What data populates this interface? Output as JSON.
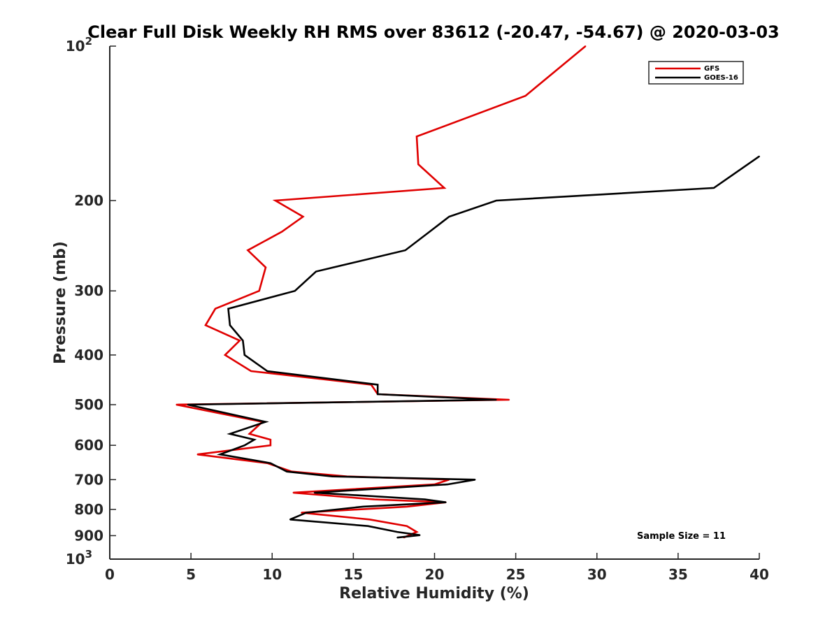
{
  "chart_data": {
    "type": "line",
    "title": "Clear Full Disk Weekly RH RMS over 83612 (-20.47, -54.67) @ 2020-03-03",
    "xlabel": "Relative Humidity (%)",
    "ylabel": "Pressure (mb)",
    "xlim": [
      0,
      40
    ],
    "ylim": [
      100,
      1000
    ],
    "yscale": "log",
    "y_reversed": true,
    "grid": false,
    "legend_position": "top-right",
    "x_ticks": [
      {
        "value": 0,
        "label": "0"
      },
      {
        "value": 5,
        "label": "5"
      },
      {
        "value": 10,
        "label": "10"
      },
      {
        "value": 15,
        "label": "15"
      },
      {
        "value": 20,
        "label": "20"
      },
      {
        "value": 25,
        "label": "25"
      },
      {
        "value": 30,
        "label": "30"
      },
      {
        "value": 35,
        "label": "35"
      },
      {
        "value": 40,
        "label": "40"
      }
    ],
    "y_ticks": [
      {
        "value": 100,
        "label": "10",
        "sup": "2"
      },
      {
        "value": 200,
        "label": "200"
      },
      {
        "value": 300,
        "label": "300"
      },
      {
        "value": 400,
        "label": "400"
      },
      {
        "value": 500,
        "label": "500"
      },
      {
        "value": 600,
        "label": "600"
      },
      {
        "value": 700,
        "label": "700"
      },
      {
        "value": 800,
        "label": "800"
      },
      {
        "value": 900,
        "label": "900"
      },
      {
        "value": 1000,
        "label": "10",
        "sup": "3"
      }
    ],
    "annotation": "Sample Size = 11",
    "series": [
      {
        "name": "GFS",
        "color": "#e00000",
        "points": [
          [
            29.3,
            100
          ],
          [
            25.6,
            125
          ],
          [
            18.9,
            150
          ],
          [
            19.0,
            170
          ],
          [
            20.6,
            189
          ],
          [
            10.2,
            200
          ],
          [
            11.9,
            215
          ],
          [
            10.6,
            230
          ],
          [
            8.5,
            250
          ],
          [
            9.6,
            270
          ],
          [
            9.2,
            300
          ],
          [
            6.5,
            325
          ],
          [
            5.9,
            350
          ],
          [
            8.0,
            375
          ],
          [
            7.1,
            400
          ],
          [
            8.7,
            430
          ],
          [
            16.1,
            457
          ],
          [
            16.5,
            477
          ],
          [
            24.6,
            489
          ],
          [
            4.1,
            500
          ],
          [
            9.4,
            540
          ],
          [
            8.6,
            570
          ],
          [
            9.9,
            585
          ],
          [
            9.9,
            600
          ],
          [
            5.4,
            625
          ],
          [
            9.7,
            650
          ],
          [
            11.2,
            675
          ],
          [
            14.6,
            690
          ],
          [
            20.9,
            700
          ],
          [
            20.0,
            715
          ],
          [
            11.3,
            742
          ],
          [
            16.3,
            765
          ],
          [
            20.7,
            775
          ],
          [
            18.3,
            790
          ],
          [
            11.8,
            812
          ],
          [
            16.0,
            837
          ],
          [
            18.3,
            862
          ],
          [
            18.9,
            885
          ],
          [
            18.1,
            908
          ]
        ]
      },
      {
        "name": "GOES-16",
        "color": "#000000",
        "points": [
          [
            40.0,
            164
          ],
          [
            37.2,
            189
          ],
          [
            23.8,
            200
          ],
          [
            20.9,
            215
          ],
          [
            19.7,
            230
          ],
          [
            18.2,
            250
          ],
          [
            12.7,
            275
          ],
          [
            11.4,
            300
          ],
          [
            7.3,
            325
          ],
          [
            7.4,
            350
          ],
          [
            8.2,
            375
          ],
          [
            8.3,
            400
          ],
          [
            9.7,
            430
          ],
          [
            16.5,
            457
          ],
          [
            16.5,
            477
          ],
          [
            23.8,
            489
          ],
          [
            4.8,
            500
          ],
          [
            9.6,
            540
          ],
          [
            7.4,
            570
          ],
          [
            8.9,
            585
          ],
          [
            8.3,
            600
          ],
          [
            6.8,
            625
          ],
          [
            9.9,
            650
          ],
          [
            10.9,
            675
          ],
          [
            13.7,
            690
          ],
          [
            22.5,
            700
          ],
          [
            20.8,
            715
          ],
          [
            12.6,
            742
          ],
          [
            19.4,
            765
          ],
          [
            20.7,
            775
          ],
          [
            15.6,
            790
          ],
          [
            12.1,
            812
          ],
          [
            11.1,
            837
          ],
          [
            15.9,
            862
          ],
          [
            17.7,
            885
          ],
          [
            19.1,
            898
          ],
          [
            17.7,
            908
          ]
        ]
      }
    ]
  }
}
